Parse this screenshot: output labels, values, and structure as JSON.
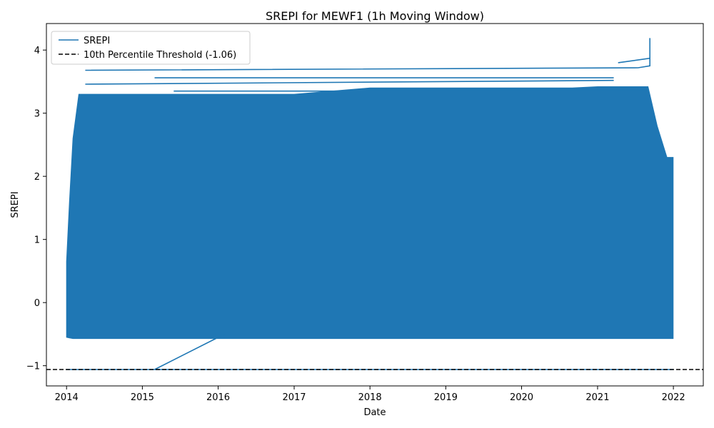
{
  "chart_data": {
    "type": "line",
    "title": "SREPI for MEWF1 (1h Moving Window)",
    "xlabel": "Date",
    "ylabel": "SREPI",
    "xlim": [
      "2013-09-26",
      "2022-05-25"
    ],
    "ylim": [
      -1.32,
      4.42
    ],
    "x_ticks": [
      "2014",
      "2015",
      "2016",
      "2017",
      "2018",
      "2019",
      "2020",
      "2021",
      "2022"
    ],
    "x_tick_dates": [
      "2014-01-01",
      "2015-01-01",
      "2016-01-01",
      "2017-01-01",
      "2018-01-01",
      "2019-01-01",
      "2020-01-01",
      "2021-01-01",
      "2022-01-01"
    ],
    "y_ticks": [
      -1,
      0,
      1,
      2,
      3,
      4
    ],
    "grid": false,
    "legend_position": "upper left",
    "series": [
      {
        "name": "SREPI",
        "color": "#1f77b4",
        "envelope": {
          "x": [
            "2014-01-01",
            "2014-01-15",
            "2014-02-01",
            "2014-03-01",
            "2014-06-01",
            "2015-01-01",
            "2016-01-01",
            "2017-01-01",
            "2018-01-01",
            "2019-01-01",
            "2020-01-01",
            "2020-09-01",
            "2021-01-01",
            "2021-04-01",
            "2021-07-01",
            "2021-09-01",
            "2021-10-15",
            "2021-12-01",
            "2021-12-31"
          ],
          "y_min": [
            -0.55,
            -0.56,
            -0.57,
            -0.57,
            -0.57,
            -0.57,
            -0.57,
            -0.57,
            -0.57,
            -0.57,
            -0.57,
            -0.57,
            -0.57,
            -0.57,
            -0.57,
            -0.57,
            -0.57,
            -0.57,
            -0.57
          ],
          "y_max": [
            0.65,
            1.6,
            2.6,
            3.3,
            3.3,
            3.3,
            3.3,
            3.3,
            3.4,
            3.4,
            3.4,
            3.4,
            3.42,
            3.42,
            3.42,
            3.42,
            2.8,
            2.3,
            2.3
          ]
        },
        "excursions": [
          {
            "x": [
              "2014-04-01",
              "2021-07-15",
              "2021-09-10",
              "2021-09-10"
            ],
            "y": [
              3.68,
              3.72,
              3.75,
              3.87
            ]
          },
          {
            "x": [
              "2015-03-01",
              "2021-03-20"
            ],
            "y": [
              3.56,
              3.56
            ]
          },
          {
            "x": [
              "2014-04-01",
              "2021-03-20"
            ],
            "y": [
              3.46,
              3.52
            ]
          },
          {
            "x": [
              "2021-04-10",
              "2021-09-10",
              "2021-09-10"
            ],
            "y": [
              3.8,
              3.87,
              4.19
            ]
          },
          {
            "x": [
              "2015-06-01",
              "2021-09-01"
            ],
            "y": [
              3.35,
              3.35
            ]
          },
          {
            "x": [
              "2015-03-01",
              "2016-02-01"
            ],
            "y": [
              -1.06,
              -0.5
            ]
          }
        ],
        "floor_line": {
          "x": [
            "2014-01-01",
            "2021-12-31"
          ],
          "y": [
            -1.06,
            -1.06
          ]
        }
      },
      {
        "name": "10th Percentile Threshold (-1.06)",
        "color": "#000000",
        "style": "dashed",
        "y": -1.06
      }
    ]
  }
}
